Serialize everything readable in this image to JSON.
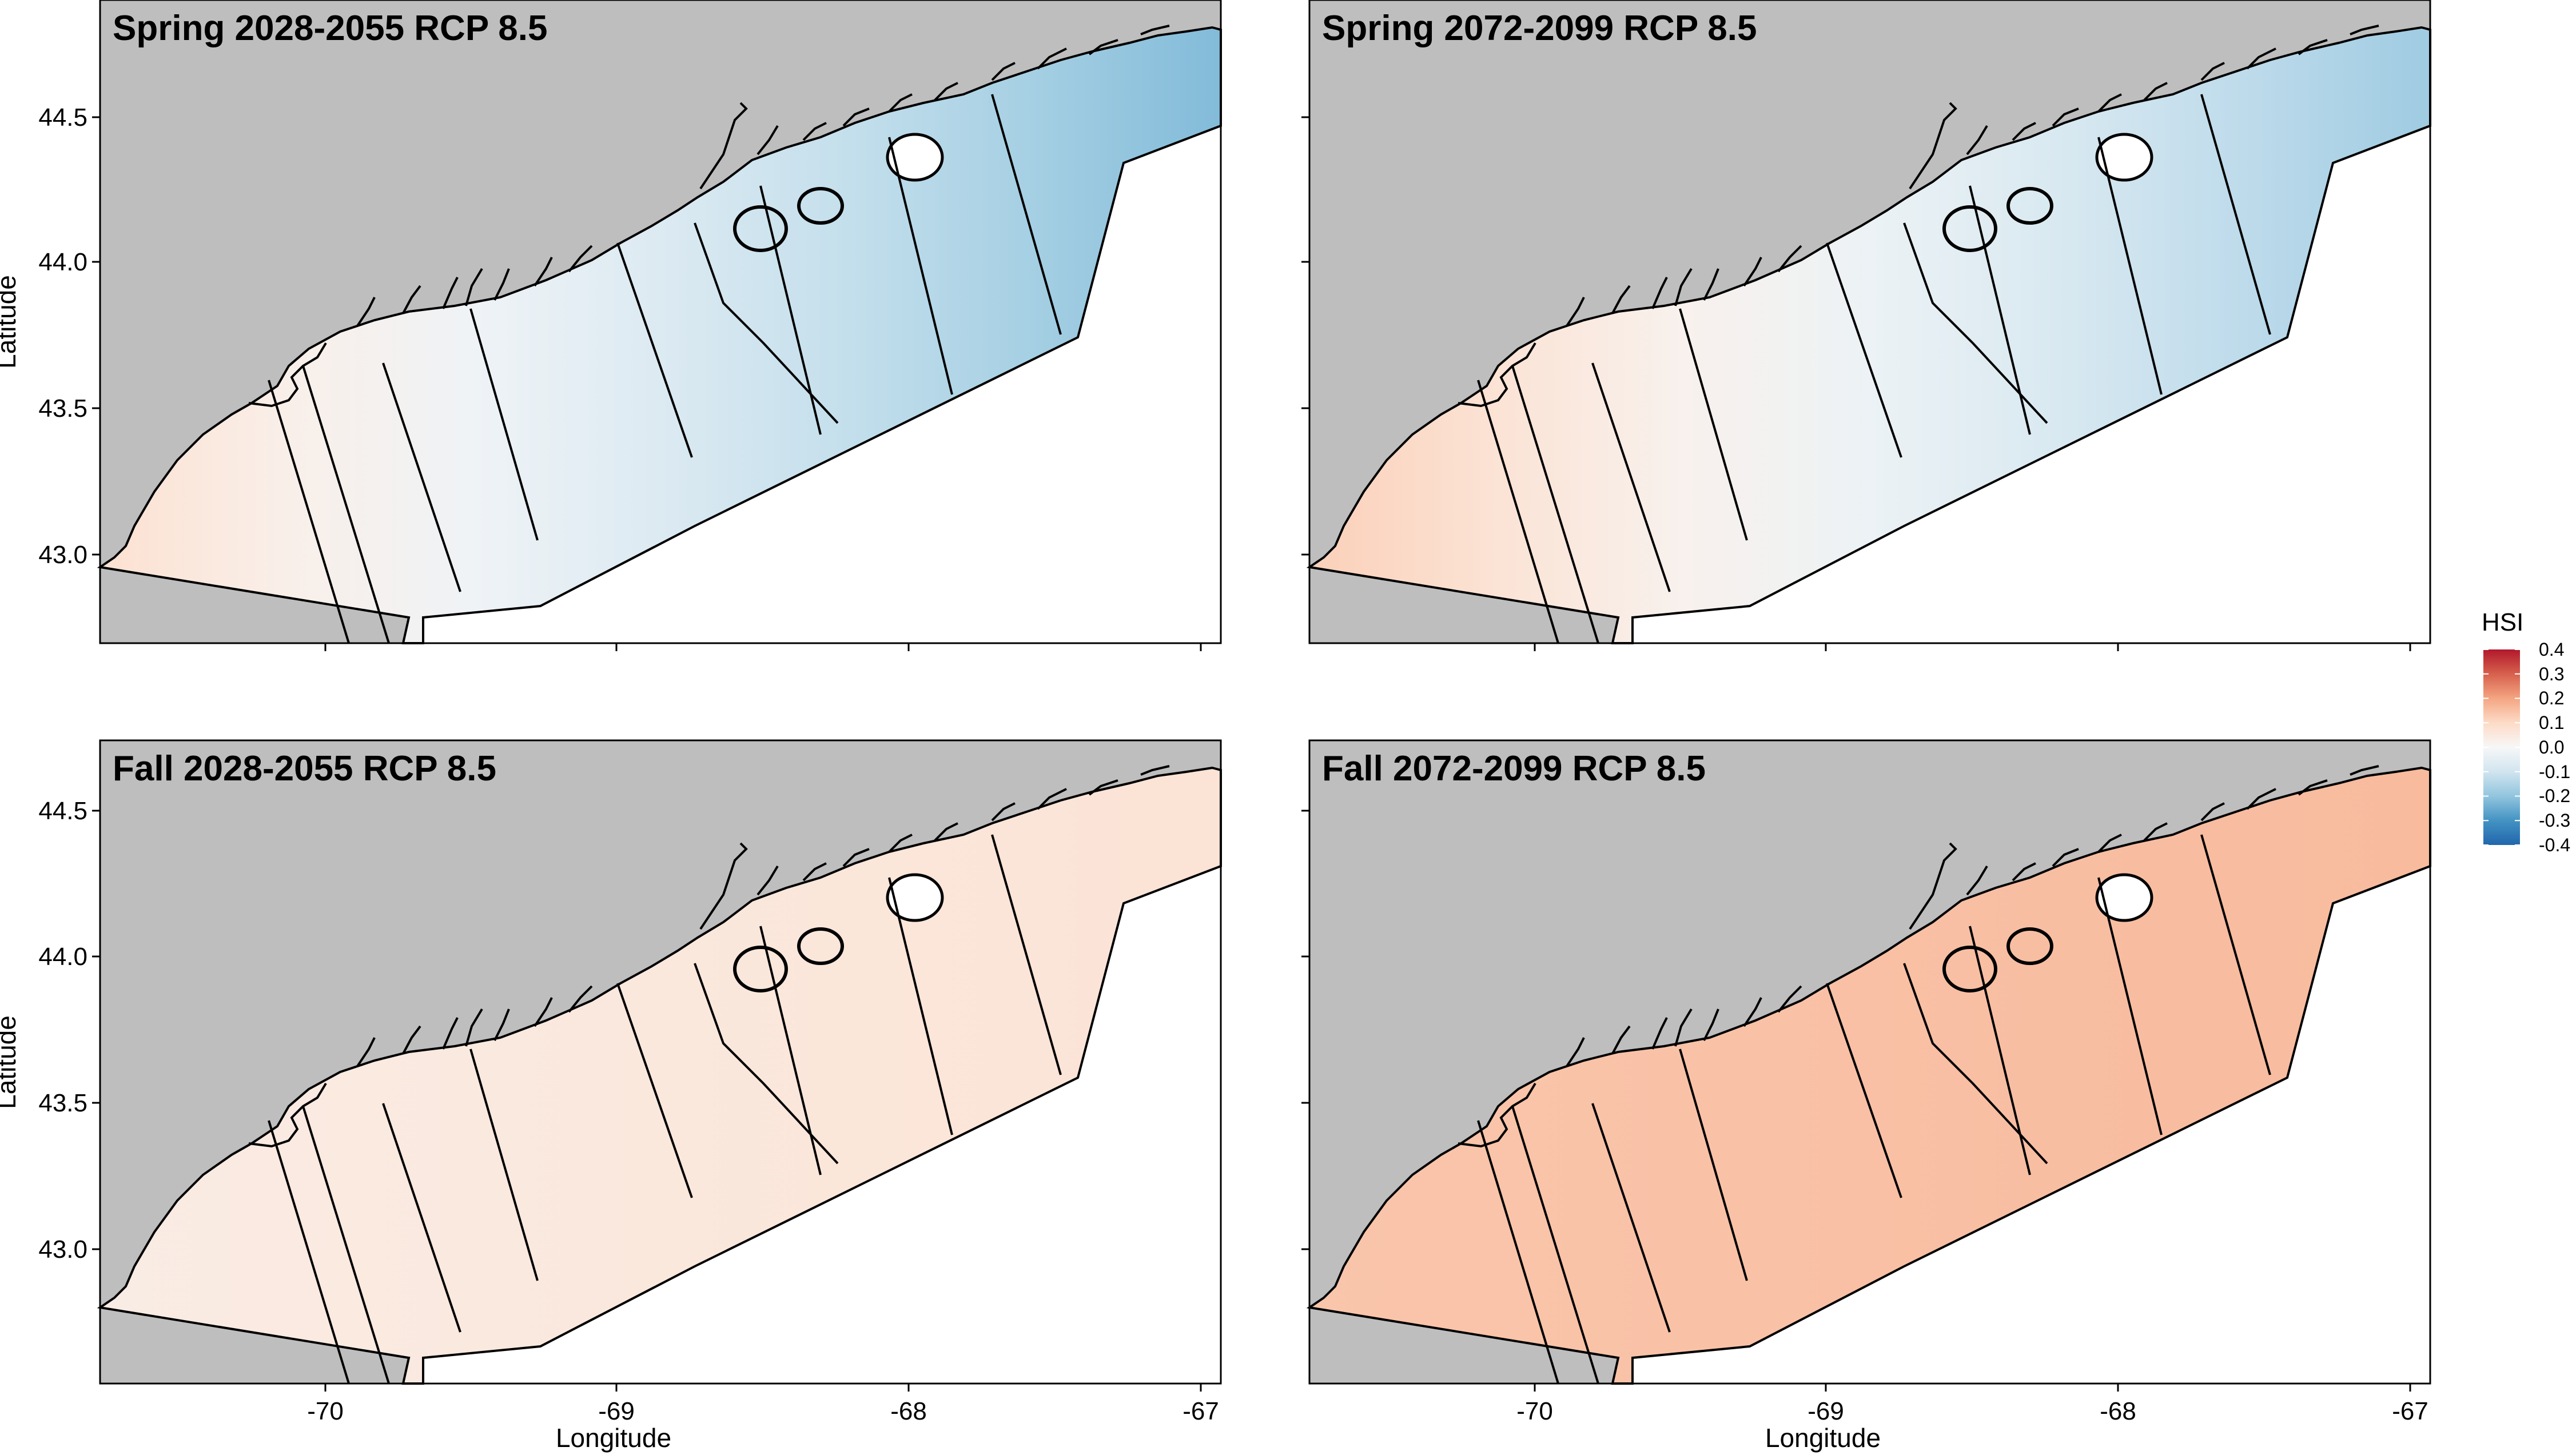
{
  "figure": {
    "x_axis_title": "Longitude",
    "y_axis_title": "Latitude",
    "x_ticks": [
      "-70",
      "-69",
      "-68",
      "-67"
    ],
    "y_ticks": [
      "44.5",
      "44.0",
      "43.5",
      "43.0"
    ],
    "land_color": "#bebebe",
    "outline_color": "#000000"
  },
  "panels": [
    {
      "id": "p1",
      "title": "Spring 2028-2055 RCP 8.5",
      "pattern": "gradient",
      "west_value": 0.08,
      "east_value": -0.22
    },
    {
      "id": "p2",
      "title": "Spring 2072-2099 RCP 8.5",
      "pattern": "gradient",
      "west_value": 0.12,
      "east_value": -0.18
    },
    {
      "id": "p3",
      "title": "Fall 2028-2055 RCP 8.5",
      "pattern": "uniform",
      "west_value": 0.04,
      "east_value": 0.07
    },
    {
      "id": "p4",
      "title": "Fall 2072-2099 RCP 8.5",
      "pattern": "uniform",
      "west_value": 0.14,
      "east_value": 0.16
    }
  ],
  "legend": {
    "title": "HSI",
    "labels": [
      "0.4",
      "0.3",
      "0.2",
      "0.1",
      "0.0",
      "-0.1",
      "-0.2",
      "-0.3",
      "-0.4"
    ],
    "stops": [
      {
        "value": 0.4,
        "color": "#b2182b"
      },
      {
        "value": 0.3,
        "color": "#d6604d"
      },
      {
        "value": 0.2,
        "color": "#f4a582"
      },
      {
        "value": 0.1,
        "color": "#fddbc7"
      },
      {
        "value": 0.0,
        "color": "#f7f7f7"
      },
      {
        "value": -0.1,
        "color": "#d1e5f0"
      },
      {
        "value": -0.2,
        "color": "#92c5de"
      },
      {
        "value": -0.3,
        "color": "#4393c3"
      },
      {
        "value": -0.4,
        "color": "#2166ac"
      }
    ]
  }
}
